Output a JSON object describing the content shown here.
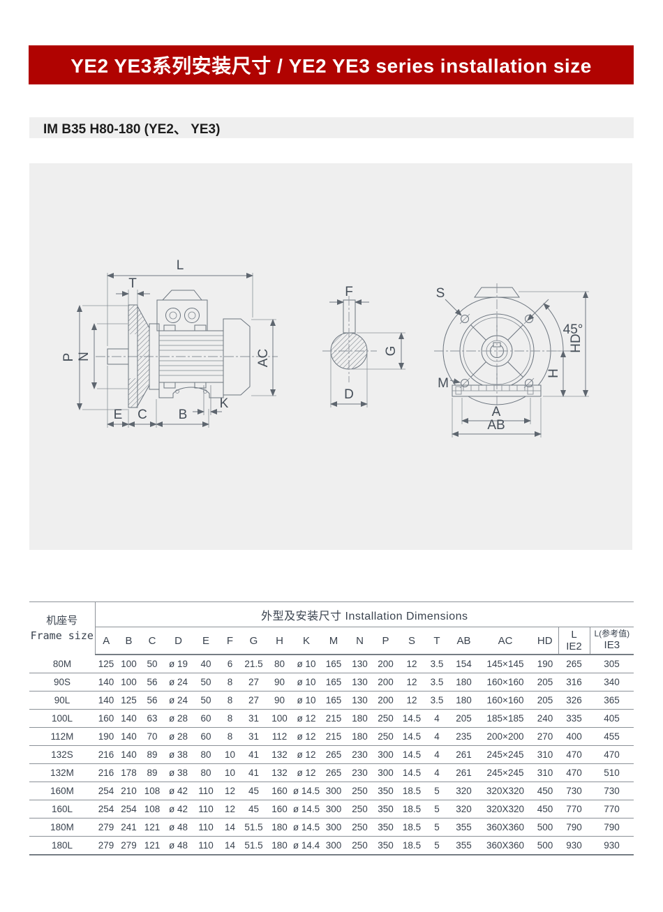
{
  "banner": {
    "title": "YE2 YE3系列安装尺寸 / YE2 YE3 series installation size"
  },
  "subtitle": {
    "text": "IM B35 H80-180 (YE2、 YE3)"
  },
  "colors": {
    "banner_red": "#B00301",
    "panel_gray": "#EFEFEF",
    "table_text": "#39424E",
    "line_gray": "#6B747E"
  },
  "drawing": {
    "description": "Three orthographic views of a B35 flange-mounted electric motor with dimension callouts",
    "labels": {
      "L": "L",
      "T": "T",
      "P": "P",
      "N": "N",
      "AC": "AC",
      "E": "E",
      "C": "C",
      "B": "B",
      "K": "K",
      "F": "F",
      "G": "G",
      "D": "D",
      "S": "S",
      "M": "M",
      "H": "H",
      "HD": "HD",
      "A": "A",
      "AB": "AB",
      "angle45": "45°"
    }
  },
  "table": {
    "frame_header_zh": "机座号",
    "frame_header_en": "Frame size",
    "group_header": "外型及安装尺寸  Installation Dimensions",
    "columns": [
      "A",
      "B",
      "C",
      "D",
      "E",
      "F",
      "G",
      "H",
      "K",
      "M",
      "N",
      "P",
      "S",
      "T",
      "AB",
      "AC",
      "HD"
    ],
    "col_l_ie2": {
      "top": "L",
      "bottom": "IE2"
    },
    "col_l_ie3": {
      "top": "L(参考值)",
      "bottom": "IE3"
    },
    "rows": [
      {
        "frame": "80M",
        "values": [
          "125",
          "100",
          "50",
          "ø 19",
          "40",
          "6",
          "21.5",
          "80",
          "ø 10",
          "165",
          "130",
          "200",
          "12",
          "3.5",
          "154",
          "145×145",
          "190",
          "265",
          "305"
        ]
      },
      {
        "frame": "90S",
        "values": [
          "140",
          "100",
          "56",
          "ø 24",
          "50",
          "8",
          "27",
          "90",
          "ø 10",
          "165",
          "130",
          "200",
          "12",
          "3.5",
          "180",
          "160×160",
          "205",
          "316",
          "340"
        ]
      },
      {
        "frame": "90L",
        "values": [
          "140",
          "125",
          "56",
          "ø 24",
          "50",
          "8",
          "27",
          "90",
          "ø 10",
          "165",
          "130",
          "200",
          "12",
          "3.5",
          "180",
          "160×160",
          "205",
          "326",
          "365"
        ]
      },
      {
        "frame": "100L",
        "values": [
          "160",
          "140",
          "63",
          "ø 28",
          "60",
          "8",
          "31",
          "100",
          "ø 12",
          "215",
          "180",
          "250",
          "14.5",
          "4",
          "205",
          "185×185",
          "240",
          "335",
          "405"
        ]
      },
      {
        "frame": "112M",
        "values": [
          "190",
          "140",
          "70",
          "ø 28",
          "60",
          "8",
          "31",
          "112",
          "ø 12",
          "215",
          "180",
          "250",
          "14.5",
          "4",
          "235",
          "200×200",
          "270",
          "400",
          "455"
        ]
      },
      {
        "frame": "132S",
        "values": [
          "216",
          "140",
          "89",
          "ø 38",
          "80",
          "10",
          "41",
          "132",
          "ø 12",
          "265",
          "230",
          "300",
          "14.5",
          "4",
          "261",
          "245×245",
          "310",
          "470",
          "470"
        ]
      },
      {
        "frame": "132M",
        "values": [
          "216",
          "178",
          "89",
          "ø 38",
          "80",
          "10",
          "41",
          "132",
          "ø 12",
          "265",
          "230",
          "300",
          "14.5",
          "4",
          "261",
          "245×245",
          "310",
          "470",
          "510"
        ]
      },
      {
        "frame": "160M",
        "values": [
          "254",
          "210",
          "108",
          "ø 42",
          "110",
          "12",
          "45",
          "160",
          "ø 14.5",
          "300",
          "250",
          "350",
          "18.5",
          "5",
          "320",
          "320X320",
          "450",
          "730",
          "730"
        ]
      },
      {
        "frame": "160L",
        "values": [
          "254",
          "254",
          "108",
          "ø 42",
          "110",
          "12",
          "45",
          "160",
          "ø 14.5",
          "300",
          "250",
          "350",
          "18.5",
          "5",
          "320",
          "320X320",
          "450",
          "770",
          "770"
        ]
      },
      {
        "frame": "180M",
        "values": [
          "279",
          "241",
          "121",
          "ø 48",
          "110",
          "14",
          "51.5",
          "180",
          "ø 14.5",
          "300",
          "250",
          "350",
          "18.5",
          "5",
          "355",
          "360X360",
          "500",
          "790",
          "790"
        ]
      },
      {
        "frame": "180L",
        "values": [
          "279",
          "279",
          "121",
          "ø 48",
          "110",
          "14",
          "51.5",
          "180",
          "ø 14.4",
          "300",
          "250",
          "350",
          "18.5",
          "5",
          "355",
          "360X360",
          "500",
          "930",
          "930"
        ]
      }
    ]
  }
}
